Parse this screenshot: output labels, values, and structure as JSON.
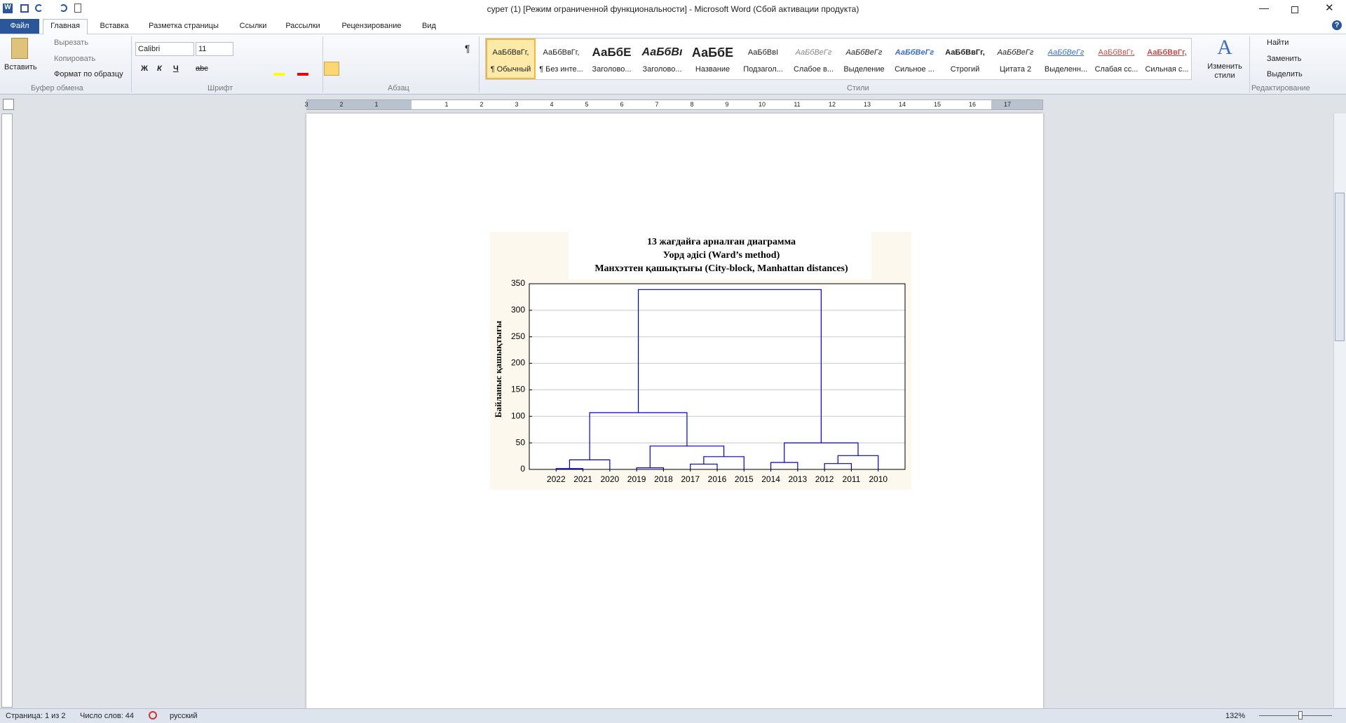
{
  "window": {
    "title": "сурет (1) [Режим ограниченной функциональности]  -  Microsoft Word (Сбой активации продукта)"
  },
  "tabs": [
    "Файл",
    "Главная",
    "Вставка",
    "Разметка страницы",
    "Ссылки",
    "Рассылки",
    "Рецензирование",
    "Вид"
  ],
  "clipboard": {
    "paste": "Вставить",
    "cut": "Вырезать",
    "copy": "Копировать",
    "format_painter": "Формат по образцу",
    "label": "Буфер обмена"
  },
  "font": {
    "name": "Calibri",
    "size": "11",
    "bold": "Ж",
    "italic": "К",
    "underline": "Ч",
    "strike": "abc",
    "label": "Шрифт"
  },
  "paragraph": {
    "pilcrow": "¶",
    "label": "Абзац"
  },
  "styles": {
    "items": [
      {
        "sample": "АаБбВвГг,",
        "name": "¶ Обычный"
      },
      {
        "sample": "АаБбВвГг,",
        "name": "¶ Без инте..."
      },
      {
        "sample": "АаБбЕ",
        "name": "Заголово..."
      },
      {
        "sample": "АаБбВı",
        "name": "Заголово..."
      },
      {
        "sample": "АаБбЕ",
        "name": "Название"
      },
      {
        "sample": "АаБбВвІ",
        "name": "Подзагол..."
      },
      {
        "sample": "АаБбВеГг",
        "name": "Слабое в..."
      },
      {
        "sample": "АаБбВеГг",
        "name": "Выделение"
      },
      {
        "sample": "АаБбВеГг",
        "name": "Сильное ..."
      },
      {
        "sample": "АаБбВвГг,",
        "name": "Строгий"
      },
      {
        "sample": "АаБбВеГг",
        "name": "Цитата 2"
      },
      {
        "sample": "АаБбВеГг",
        "name": "Выделенн..."
      },
      {
        "sample": "АаБбВвГг,",
        "name": "Слабая сс..."
      },
      {
        "sample": "АаБбВвГг,",
        "name": "Сильная с..."
      }
    ],
    "change": "Изменить стили",
    "label": "Стили"
  },
  "editing": {
    "find": "Найти",
    "replace": "Заменить",
    "select": "Выделить",
    "label": "Редактирование"
  },
  "ruler": [
    "3",
    "2",
    "1",
    "1",
    "2",
    "3",
    "4",
    "5",
    "6",
    "7",
    "8",
    "9",
    "10",
    "11",
    "12",
    "13",
    "14",
    "15",
    "16",
    "17"
  ],
  "status": {
    "page": "Страница: 1 из 2",
    "words": "Число слов: 44",
    "language": "русский",
    "zoom": "132%"
  },
  "chart_data": {
    "type": "dendrogram",
    "title": [
      "13 жағдайға  арналған диаграмма",
      "Уорд әдісі (Ward’s method)",
      "Манхэттен қашықтығы  (City-block, Manhattan distances)"
    ],
    "y_label": "Байланыс қашықтығы",
    "categories": [
      "2022",
      "2021",
      "2020",
      "2019",
      "2018",
      "2017",
      "2016",
      "2015",
      "2014",
      "2013",
      "2012",
      "2011",
      "2010"
    ],
    "merges": [
      {
        "left": 0,
        "right": 1,
        "height": 1.5
      },
      {
        "left": 13,
        "right": 2,
        "height": 18
      },
      {
        "left": 3,
        "right": 4,
        "height": 3
      },
      {
        "left": 5,
        "right": 6,
        "height": 10
      },
      {
        "left": 16,
        "right": 7,
        "height": 24
      },
      {
        "left": 15,
        "right": 17,
        "height": 44
      },
      {
        "left": 14,
        "right": 18,
        "height": 107
      },
      {
        "left": 8,
        "right": 9,
        "height": 13
      },
      {
        "left": 10,
        "right": 11,
        "height": 11
      },
      {
        "left": 21,
        "right": 12,
        "height": 26
      },
      {
        "left": 20,
        "right": 22,
        "height": 50
      },
      {
        "left": 19,
        "right": 23,
        "height": 339
      }
    ],
    "color": "#0000cc",
    "ylim": [
      0,
      350
    ],
    "yticks": [
      0,
      50,
      100,
      150,
      200,
      250,
      300,
      350
    ],
    "grid": true
  }
}
